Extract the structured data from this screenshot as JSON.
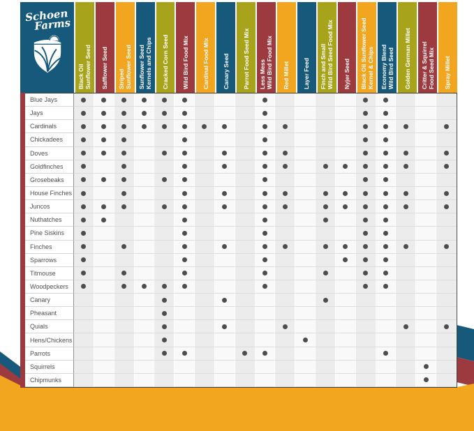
{
  "palette": {
    "blue": "#17597b",
    "olive": "#a7a41c",
    "red": "#9d3a40",
    "orange": "#f2a51f",
    "dot": "#4d4d4d"
  },
  "logo": {
    "line1": "Schoen",
    "line2": "Farms"
  },
  "chart_data": {
    "type": "table",
    "columns": [
      {
        "label": "Black Oil\nSunflower Seed",
        "color": "olive"
      },
      {
        "label": "Safflower Seed",
        "color": "red"
      },
      {
        "label": "Striped\nSunflower Seed",
        "color": "orange"
      },
      {
        "label": "Sunflower Seed\nKernels and Chips",
        "color": "blue"
      },
      {
        "label": "Cracked Corn Seed",
        "color": "olive"
      },
      {
        "label": "Wild Bird Food Mix",
        "color": "red"
      },
      {
        "label": "Cardinal Food Mix",
        "color": "orange"
      },
      {
        "label": "Canary Seed",
        "color": "blue"
      },
      {
        "label": "Parrot Food Seed Mix",
        "color": "olive"
      },
      {
        "label": "Less Mess\nWild Bird Food Mix",
        "color": "red"
      },
      {
        "label": "Red Millet",
        "color": "orange"
      },
      {
        "label": "Layer Feed",
        "color": "blue"
      },
      {
        "label": "Finch and Small\nWild Bird Seed Food Mix",
        "color": "olive"
      },
      {
        "label": "Nyjer Seed",
        "color": "red"
      },
      {
        "label": "Black Oil Sunflower Seed\nKernel & Chips",
        "color": "orange"
      },
      {
        "label": "Economy Blend\nWild Bird Seed",
        "color": "blue"
      },
      {
        "label": "Golden German Millet",
        "color": "olive"
      },
      {
        "label": "Critter & Squirrel\nFood Seed Mix",
        "color": "red"
      },
      {
        "label": "Spray Millet",
        "color": "orange"
      }
    ],
    "rows": [
      {
        "label": "Blue Jays",
        "eats": [
          1,
          2,
          3,
          4,
          5,
          6,
          10,
          15,
          16
        ]
      },
      {
        "label": "Jays",
        "eats": [
          1,
          2,
          3,
          4,
          5,
          6,
          10,
          15,
          16
        ]
      },
      {
        "label": "Cardinals",
        "eats": [
          1,
          2,
          3,
          4,
          5,
          6,
          7,
          8,
          10,
          11,
          15,
          16,
          17,
          19
        ]
      },
      {
        "label": "Chickadees",
        "eats": [
          1,
          2,
          3,
          6,
          10,
          15,
          16
        ]
      },
      {
        "label": "Doves",
        "eats": [
          1,
          2,
          3,
          5,
          6,
          8,
          10,
          11,
          15,
          16,
          17,
          19
        ]
      },
      {
        "label": "Goldfinches",
        "eats": [
          1,
          3,
          6,
          8,
          10,
          11,
          13,
          14,
          15,
          16,
          17,
          19
        ]
      },
      {
        "label": "Grosebeaks",
        "eats": [
          1,
          2,
          3,
          5,
          6,
          10,
          15,
          16
        ]
      },
      {
        "label": "House Finches",
        "eats": [
          1,
          3,
          6,
          8,
          10,
          11,
          13,
          14,
          15,
          16,
          17,
          19
        ]
      },
      {
        "label": "Juncos",
        "eats": [
          1,
          2,
          3,
          5,
          6,
          8,
          10,
          11,
          13,
          14,
          15,
          16,
          17,
          19
        ]
      },
      {
        "label": "Nuthatches",
        "eats": [
          1,
          2,
          6,
          10,
          13,
          15,
          16
        ]
      },
      {
        "label": "Pine Siskins",
        "eats": [
          1,
          6,
          10,
          15,
          16
        ]
      },
      {
        "label": "Finches",
        "eats": [
          1,
          3,
          6,
          8,
          10,
          11,
          13,
          14,
          15,
          16,
          17,
          19
        ]
      },
      {
        "label": "Sparrows",
        "eats": [
          1,
          6,
          10,
          14,
          15,
          16
        ]
      },
      {
        "label": "Titmouse",
        "eats": [
          1,
          3,
          6,
          10,
          13,
          15,
          16
        ]
      },
      {
        "label": "Woodpeckers",
        "eats": [
          1,
          3,
          4,
          5,
          6,
          10,
          15,
          16
        ]
      },
      {
        "label": "Canary",
        "eats": [
          5,
          8,
          13
        ]
      },
      {
        "label": "Pheasant",
        "eats": [
          5
        ]
      },
      {
        "label": "Quials",
        "eats": [
          5,
          8,
          11,
          17,
          19
        ]
      },
      {
        "label": "Hens/Chickens",
        "eats": [
          5,
          12
        ]
      },
      {
        "label": "Parrots",
        "eats": [
          5,
          6,
          9,
          10,
          16
        ]
      },
      {
        "label": "Squirrels",
        "eats": [
          18
        ]
      },
      {
        "label": "Chipmunks",
        "eats": [
          18
        ]
      }
    ]
  }
}
